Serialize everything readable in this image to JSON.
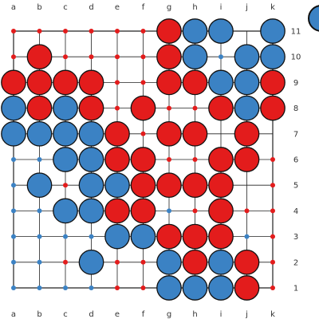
{
  "board": {
    "columns": [
      "a",
      "b",
      "c",
      "d",
      "e",
      "f",
      "g",
      "h",
      "i",
      "j",
      "k"
    ],
    "rows": [
      "11",
      "10",
      "9",
      "8",
      "7",
      "6",
      "5",
      "4",
      "3",
      "2",
      "1"
    ],
    "colors": {
      "red": "#e31c1c",
      "blue": "#3b82c4",
      "line": "#222222",
      "stone_outline": "#111111"
    },
    "stones": [
      "..........",
      "",
      "",
      "",
      "",
      "",
      "",
      "",
      "",
      "",
      ""
    ],
    "position": [
      "......RBB.B",
      ".R....RB.BB",
      "RRRR..RRBBR",
      "BRBR.R..RBR",
      "BBBBR.RR.R.",
      "..BBRR..RR.",
      ".B.BBRRRR..",
      "..BBRR..R..",
      "....BBRRR..",
      "...B..BRBR.",
      "......BBBR."
    ],
    "empty_dots": [
      "R.RRRR.....",
      "R.RRRR..B..",
      "....RR.....",
      "....R.RR...",
      "...........",
      "BB....RR..R",
      "B.R.......R",
      "BB....BR.RR",
      "BBBB..R..BR",
      "BBR.RR....R",
      "BBBBRR....R"
    ]
  }
}
